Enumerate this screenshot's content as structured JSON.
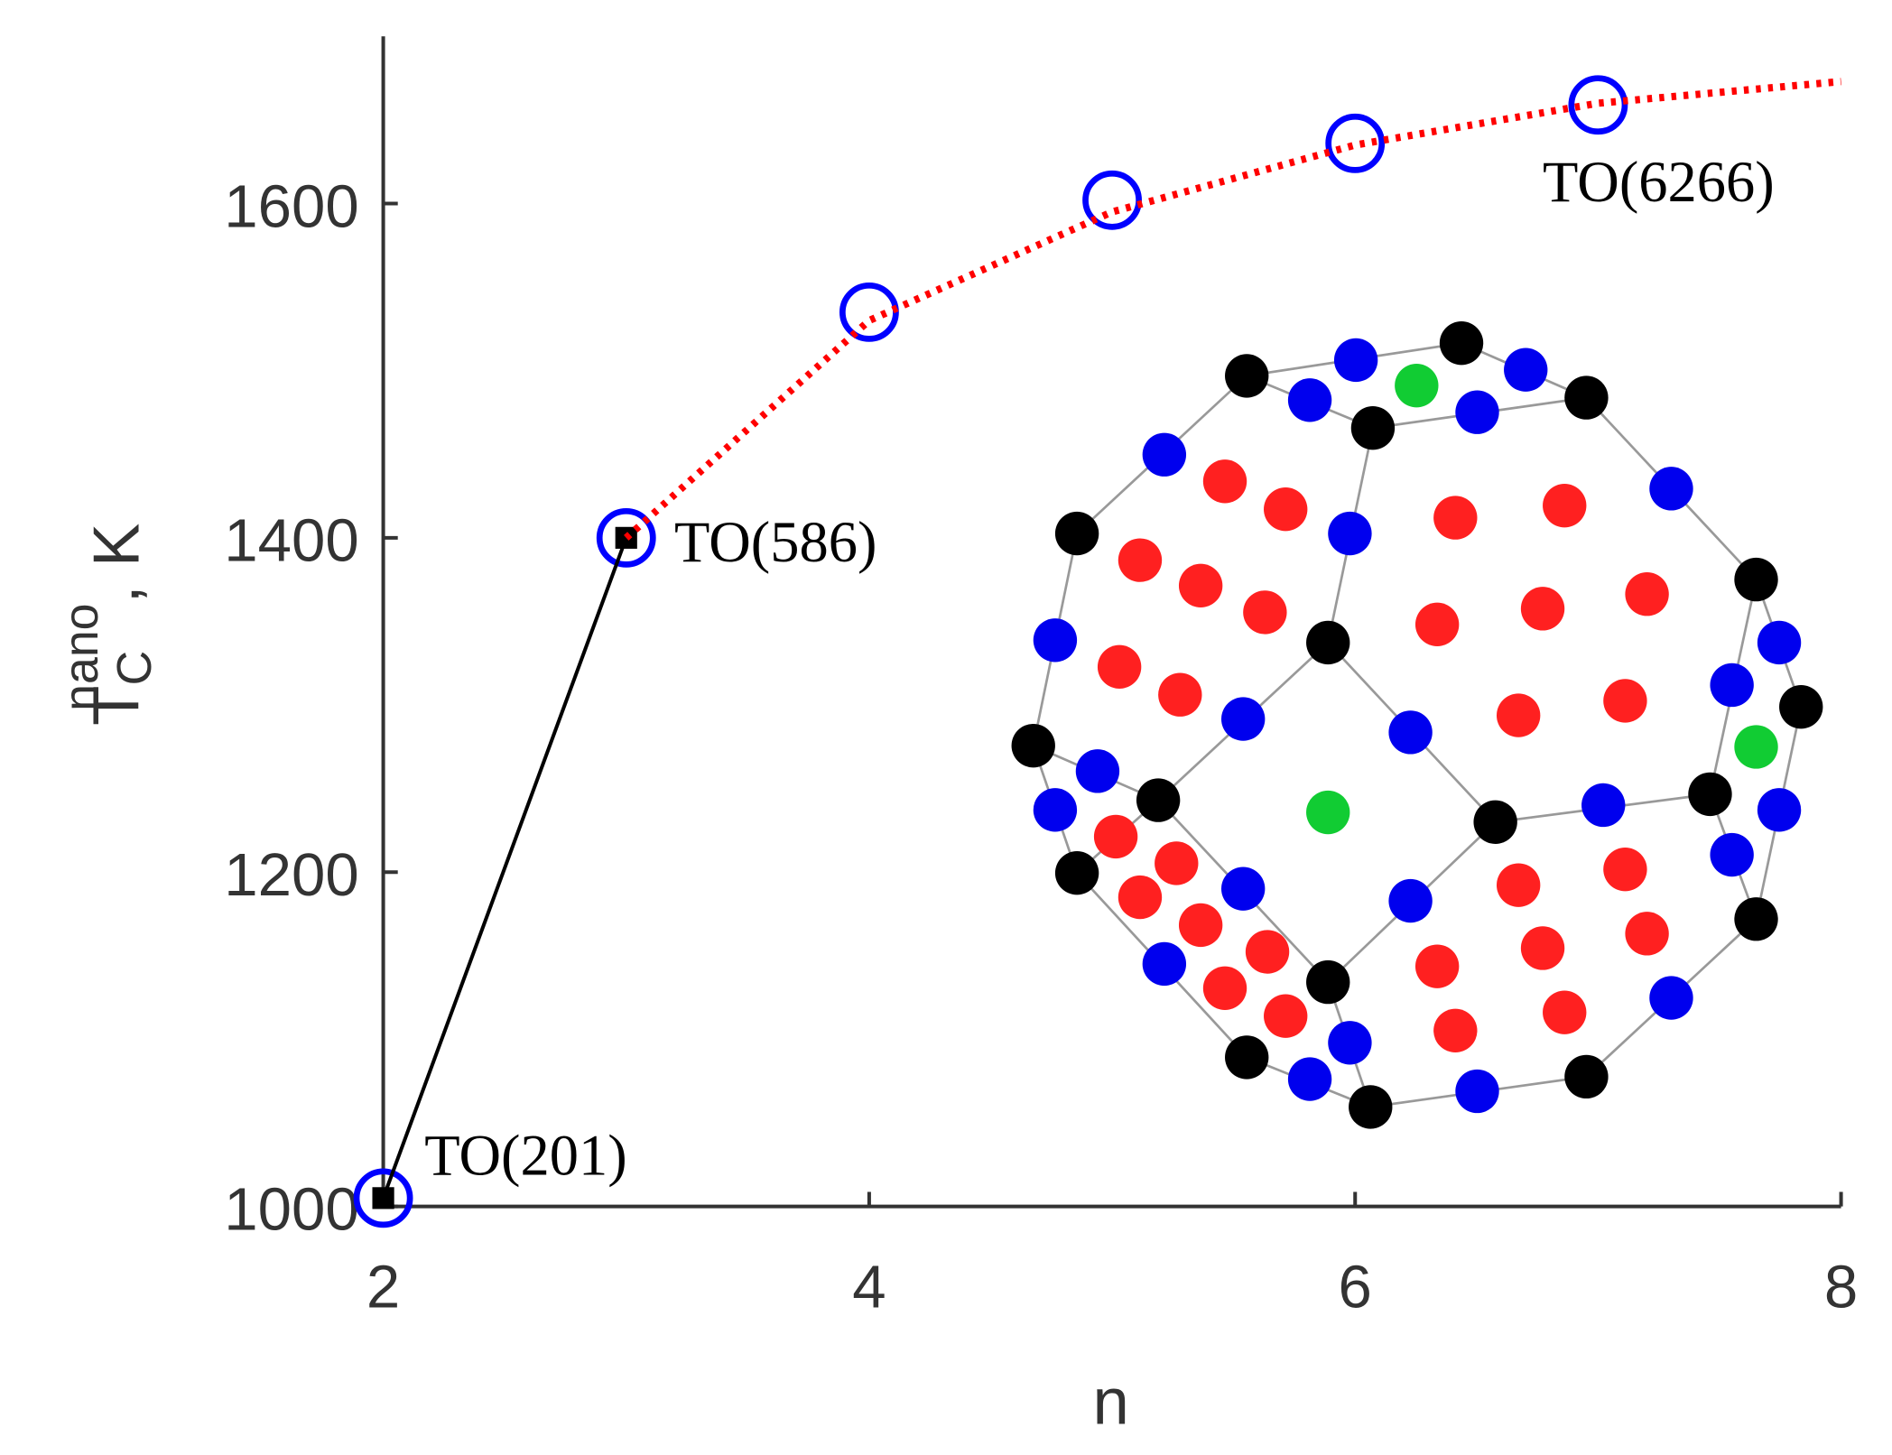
{
  "chart_data": {
    "type": "line",
    "xlabel": "n",
    "ylabel": {
      "main": "T",
      "sub": "C",
      "sup": "nano",
      "unit": ", K"
    },
    "xlim": [
      2,
      8
    ],
    "ylim": [
      1000,
      1700
    ],
    "xticks": [
      2,
      4,
      6,
      8
    ],
    "yticks": [
      1000,
      1200,
      1400,
      1600
    ],
    "grid": false,
    "series": [
      {
        "color": "#0000ff",
        "marker": "circle",
        "line": "none",
        "x": [
          2,
          3,
          4,
          5,
          6,
          7
        ],
        "values": [
          1005,
          1400,
          1535,
          1602,
          1636,
          1659
        ]
      },
      {
        "color": "#000000",
        "marker": "square",
        "line": "solid",
        "x": [
          2,
          3
        ],
        "values": [
          1005,
          1400
        ]
      },
      {
        "color": "#ff0000",
        "marker": "none",
        "line": "dotted",
        "x": [
          3,
          4,
          5,
          6,
          7,
          8
        ],
        "values": [
          1400,
          1530,
          1595,
          1635,
          1660,
          1673
        ]
      }
    ],
    "annotations": [
      "TO(201)",
      "TO(586)",
      "TO(6266)"
    ]
  }
}
